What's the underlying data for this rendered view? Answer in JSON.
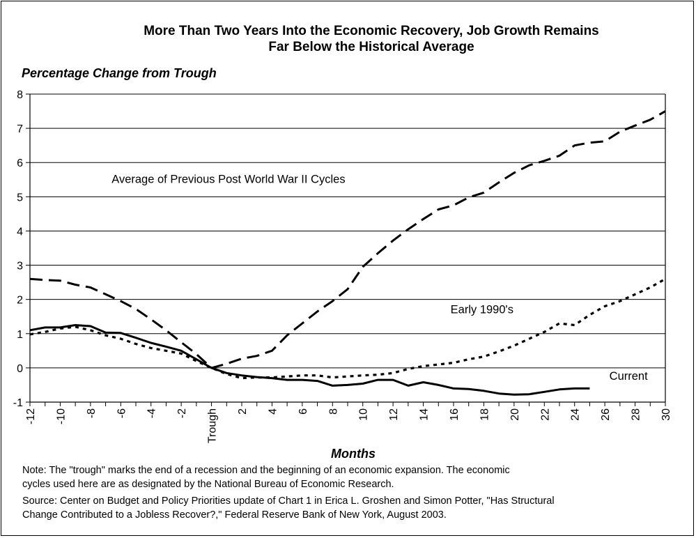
{
  "title_line1": "More Than Two Years Into the Economic Recovery, Job Growth Remains",
  "title_line2": "Far Below the Historical Average",
  "note_line1": "Note: The \"trough\" marks the end of a recession and the beginning of an economic expansion.  The economic",
  "note_line2": "cycles used here are as designated by the National Bureau of Economic Research.",
  "source_line1": "Source: Center on Budget and Policy Priorities update of Chart 1 in Erica L. Groshen and Simon Potter, \"Has Structural",
  "source_line2": "Change Contributed to a Jobless Recover?,\" Federal Reserve Bank of New York, August 2003.",
  "chart_data": {
    "type": "line",
    "ylabel": "Percentage Change from Trough",
    "xlabel": "Months",
    "xlim": [
      -12,
      30
    ],
    "ylim": [
      -1,
      8
    ],
    "grid": "horizontal",
    "x_tick_labels": [
      {
        "x": -12,
        "label": "-12"
      },
      {
        "x": -10,
        "label": "-10"
      },
      {
        "x": -8,
        "label": "-8"
      },
      {
        "x": -6,
        "label": "-6"
      },
      {
        "x": -4,
        "label": "-4"
      },
      {
        "x": -2,
        "label": "-2"
      },
      {
        "x": 0,
        "label": "Trough"
      },
      {
        "x": 2,
        "label": "2"
      },
      {
        "x": 4,
        "label": "4"
      },
      {
        "x": 6,
        "label": "6"
      },
      {
        "x": 8,
        "label": "8"
      },
      {
        "x": 10,
        "label": "10"
      },
      {
        "x": 12,
        "label": "12"
      },
      {
        "x": 14,
        "label": "14"
      },
      {
        "x": 16,
        "label": "16"
      },
      {
        "x": 18,
        "label": "18"
      },
      {
        "x": 20,
        "label": "20"
      },
      {
        "x": 22,
        "label": "22"
      },
      {
        "x": 24,
        "label": "24"
      },
      {
        "x": 26,
        "label": "26"
      },
      {
        "x": 28,
        "label": "28"
      },
      {
        "x": 30,
        "label": "30"
      }
    ],
    "y_ticks": [
      -1,
      0,
      1,
      2,
      3,
      4,
      5,
      6,
      7,
      8
    ],
    "series": [
      {
        "name": "Average of Previous Post World War II Cycles",
        "style": "long-dash",
        "color": "#000000",
        "x": [
          -12,
          -11,
          -10,
          -9,
          -8,
          -7,
          -6,
          -5,
          -4,
          -3,
          -2,
          -1,
          0,
          1,
          2,
          3,
          4,
          5,
          6,
          7,
          8,
          9,
          10,
          11,
          12,
          13,
          14,
          15,
          16,
          17,
          18,
          19,
          20,
          21,
          22,
          23,
          24,
          25,
          26,
          27,
          28,
          29,
          30
        ],
        "values": [
          2.6,
          2.57,
          2.55,
          2.43,
          2.35,
          2.15,
          1.95,
          1.72,
          1.42,
          1.1,
          0.75,
          0.4,
          0.0,
          0.12,
          0.27,
          0.35,
          0.5,
          0.95,
          1.3,
          1.65,
          1.95,
          2.3,
          2.95,
          3.35,
          3.72,
          4.05,
          4.35,
          4.63,
          4.75,
          4.98,
          5.12,
          5.42,
          5.7,
          5.92,
          6.05,
          6.2,
          6.5,
          6.58,
          6.62,
          6.9,
          7.08,
          7.25,
          7.5
        ]
      },
      {
        "name": "Early 1990's",
        "style": "dotted",
        "color": "#000000",
        "x": [
          -12,
          -11,
          -10,
          -9,
          -8,
          -7,
          -6,
          -5,
          -4,
          -3,
          -2,
          -1,
          0,
          1,
          2,
          3,
          4,
          5,
          6,
          7,
          8,
          9,
          10,
          11,
          12,
          13,
          14,
          15,
          16,
          17,
          18,
          19,
          20,
          21,
          22,
          23,
          24,
          25,
          26,
          27,
          28,
          29,
          30
        ],
        "values": [
          0.98,
          1.05,
          1.15,
          1.2,
          1.1,
          0.95,
          0.85,
          0.7,
          0.58,
          0.5,
          0.42,
          0.2,
          0.0,
          -0.18,
          -0.3,
          -0.28,
          -0.28,
          -0.25,
          -0.22,
          -0.22,
          -0.28,
          -0.25,
          -0.22,
          -0.2,
          -0.15,
          -0.03,
          0.05,
          0.1,
          0.15,
          0.25,
          0.33,
          0.48,
          0.65,
          0.85,
          1.05,
          1.3,
          1.25,
          1.55,
          1.8,
          1.95,
          2.15,
          2.35,
          2.6
        ]
      },
      {
        "name": "Current",
        "style": "solid",
        "color": "#000000",
        "x": [
          -12,
          -11,
          -10,
          -9,
          -8,
          -7,
          -6,
          -5,
          -4,
          -3,
          -2,
          -1,
          0,
          1,
          2,
          3,
          4,
          5,
          6,
          7,
          8,
          9,
          10,
          11,
          12,
          13,
          14,
          15,
          16,
          17,
          18,
          19,
          20,
          21,
          22,
          23,
          24,
          25
        ],
        "values": [
          1.1,
          1.18,
          1.18,
          1.25,
          1.22,
          1.03,
          1.02,
          0.88,
          0.73,
          0.62,
          0.5,
          0.25,
          0.0,
          -0.15,
          -0.22,
          -0.27,
          -0.3,
          -0.35,
          -0.35,
          -0.38,
          -0.52,
          -0.5,
          -0.46,
          -0.35,
          -0.35,
          -0.52,
          -0.42,
          -0.5,
          -0.6,
          -0.62,
          -0.67,
          -0.75,
          -0.78,
          -0.77,
          -0.7,
          -0.63,
          -0.6,
          -0.6
        ]
      }
    ],
    "annotations": [
      {
        "text": "Average of Previous Post World War II Cycles",
        "x": -6.6,
        "y": 5.4
      },
      {
        "text": "Early 1990's",
        "x": 15.8,
        "y": 1.6
      },
      {
        "text": "Current",
        "x": 26.3,
        "y": -0.35
      }
    ]
  }
}
